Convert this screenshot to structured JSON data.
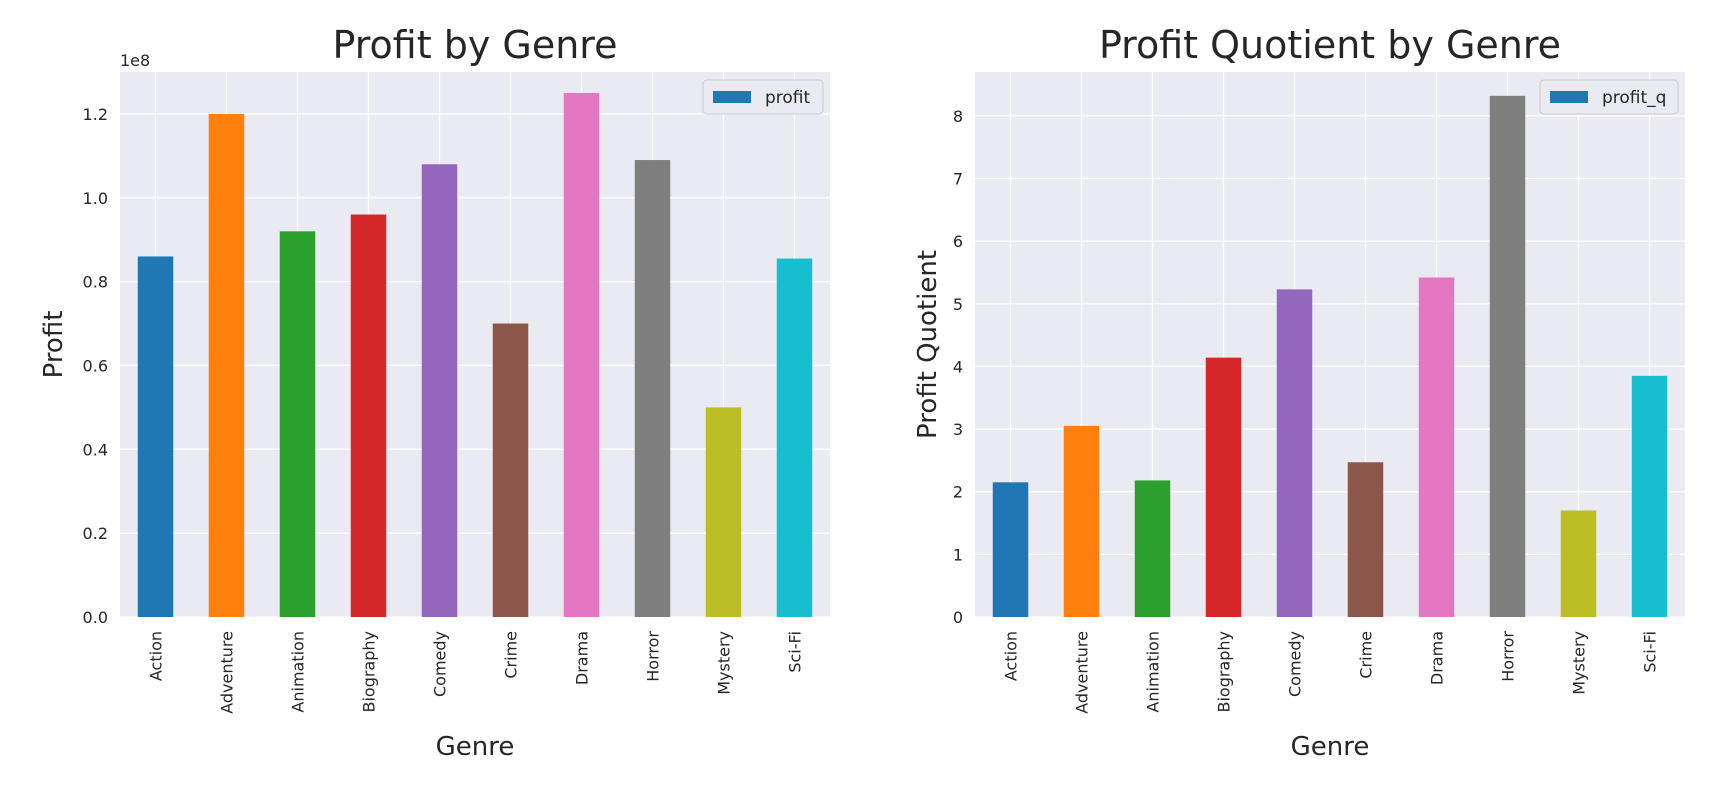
{
  "chart_data": [
    {
      "type": "bar",
      "title": "Profit by Genre",
      "xlabel": "Genre",
      "ylabel": "Profit",
      "y_offset_label": "1e8",
      "yticks": [
        "0.0",
        "0.2",
        "0.4",
        "0.6",
        "0.8",
        "1.0",
        "1.2"
      ],
      "ylim": [
        0,
        1.3
      ],
      "categories": [
        "Action",
        "Adventure",
        "Animation",
        "Biography",
        "Comedy",
        "Crime",
        "Drama",
        "Horror",
        "Mystery",
        "Sci-Fi"
      ],
      "series": [
        {
          "name": "profit",
          "values": [
            0.86,
            1.2,
            0.92,
            0.96,
            1.08,
            0.7,
            1.25,
            1.09,
            0.5,
            0.855
          ]
        }
      ],
      "legend": "top-right",
      "grid": true
    },
    {
      "type": "bar",
      "title": "Profit Quotient by Genre",
      "xlabel": "Genre",
      "ylabel": "Profit Quotient",
      "yticks": [
        "0",
        "1",
        "2",
        "3",
        "4",
        "5",
        "6",
        "7",
        "8"
      ],
      "ylim": [
        0,
        8.7
      ],
      "categories": [
        "Action",
        "Adventure",
        "Animation",
        "Biography",
        "Comedy",
        "Crime",
        "Drama",
        "Horror",
        "Mystery",
        "Sci-Fi"
      ],
      "series": [
        {
          "name": "profit_q",
          "values": [
            2.15,
            3.05,
            2.18,
            4.14,
            5.23,
            2.47,
            5.42,
            8.32,
            1.7,
            3.85
          ]
        }
      ],
      "legend": "top-right",
      "grid": true
    }
  ],
  "colors": {
    "bars": [
      "#1f77b4",
      "#ff7f0e",
      "#2ca02c",
      "#d62728",
      "#9467bd",
      "#8c564b",
      "#e377c2",
      "#7f7f7f",
      "#bcbd22",
      "#17becf"
    ],
    "legend_swatch": "#1f77b4",
    "plot_background": "#eaeaf2",
    "grid": "#ffffff"
  }
}
